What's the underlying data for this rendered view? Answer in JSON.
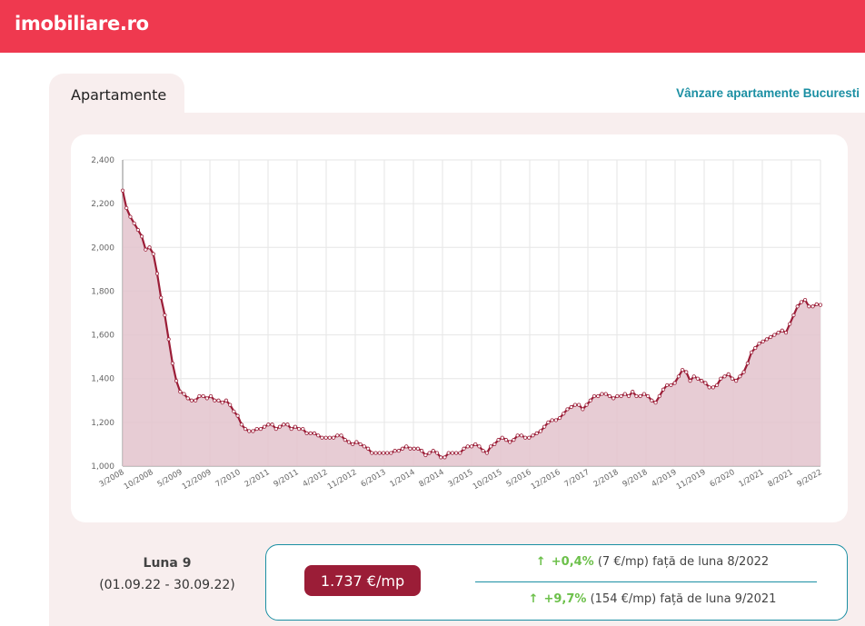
{
  "header": {
    "logo_text": "imobiliare.ro"
  },
  "tabs": [
    {
      "label": "Apartamente"
    }
  ],
  "link": {
    "label": "Vânzare apartamente Bucuresti"
  },
  "chart_data": {
    "type": "area",
    "ylim": [
      1000,
      2400
    ],
    "y_ticks": [
      1000,
      1200,
      1400,
      1600,
      1800,
      2000,
      2200,
      2400
    ],
    "x_tick_labels": [
      "3/2008",
      "10/2008",
      "5/2009",
      "12/2009",
      "7/2010",
      "2/2011",
      "9/2011",
      "4/2012",
      "11/2012",
      "6/2013",
      "1/2014",
      "8/2014",
      "3/2015",
      "10/2015",
      "5/2016",
      "12/2016",
      "7/2017",
      "2/2018",
      "9/2018",
      "4/2019",
      "11/2019",
      "6/2020",
      "1/2021",
      "8/2021",
      "9/2022"
    ],
    "start": "3/2008",
    "end": "9/2022",
    "grid": true,
    "line_color": "#9b1d37",
    "fill_color": "#e3c3cc",
    "values": [
      2260,
      2180,
      2140,
      2110,
      2080,
      2050,
      1990,
      2000,
      1970,
      1880,
      1770,
      1690,
      1580,
      1470,
      1390,
      1340,
      1330,
      1310,
      1300,
      1300,
      1320,
      1320,
      1310,
      1320,
      1300,
      1300,
      1290,
      1300,
      1280,
      1250,
      1230,
      1190,
      1170,
      1160,
      1160,
      1170,
      1170,
      1180,
      1190,
      1190,
      1170,
      1180,
      1190,
      1190,
      1170,
      1180,
      1170,
      1170,
      1150,
      1150,
      1150,
      1140,
      1130,
      1130,
      1130,
      1130,
      1140,
      1140,
      1120,
      1110,
      1100,
      1110,
      1100,
      1090,
      1080,
      1060,
      1060,
      1060,
      1060,
      1060,
      1060,
      1070,
      1070,
      1080,
      1090,
      1080,
      1080,
      1080,
      1070,
      1050,
      1060,
      1070,
      1060,
      1040,
      1040,
      1060,
      1060,
      1060,
      1060,
      1080,
      1090,
      1090,
      1100,
      1090,
      1070,
      1060,
      1090,
      1100,
      1120,
      1130,
      1120,
      1110,
      1120,
      1140,
      1140,
      1130,
      1130,
      1140,
      1150,
      1160,
      1180,
      1200,
      1210,
      1210,
      1220,
      1240,
      1260,
      1270,
      1280,
      1280,
      1260,
      1280,
      1300,
      1320,
      1320,
      1330,
      1330,
      1320,
      1310,
      1320,
      1320,
      1330,
      1320,
      1340,
      1320,
      1320,
      1330,
      1320,
      1300,
      1290,
      1320,
      1350,
      1370,
      1370,
      1380,
      1410,
      1440,
      1430,
      1390,
      1410,
      1400,
      1390,
      1380,
      1360,
      1360,
      1370,
      1400,
      1410,
      1420,
      1400,
      1390,
      1410,
      1430,
      1470,
      1520,
      1540,
      1560,
      1570,
      1580,
      1590,
      1600,
      1610,
      1620,
      1610,
      1650,
      1690,
      1730,
      1750,
      1760,
      1730,
      1730,
      1740,
      1737
    ]
  },
  "period": {
    "month_label": "Luna 9",
    "range": "(01.09.22 - 30.09.22)"
  },
  "stats": {
    "price": "1.737 €/mp",
    "changes": [
      {
        "arrow": "↑",
        "pct": "+0,4%",
        "text": "(7 €/mp) față de luna 8/2022"
      },
      {
        "arrow": "↑",
        "pct": "+9,7%",
        "text": "(154 €/mp) față de luna 9/2021"
      }
    ]
  }
}
